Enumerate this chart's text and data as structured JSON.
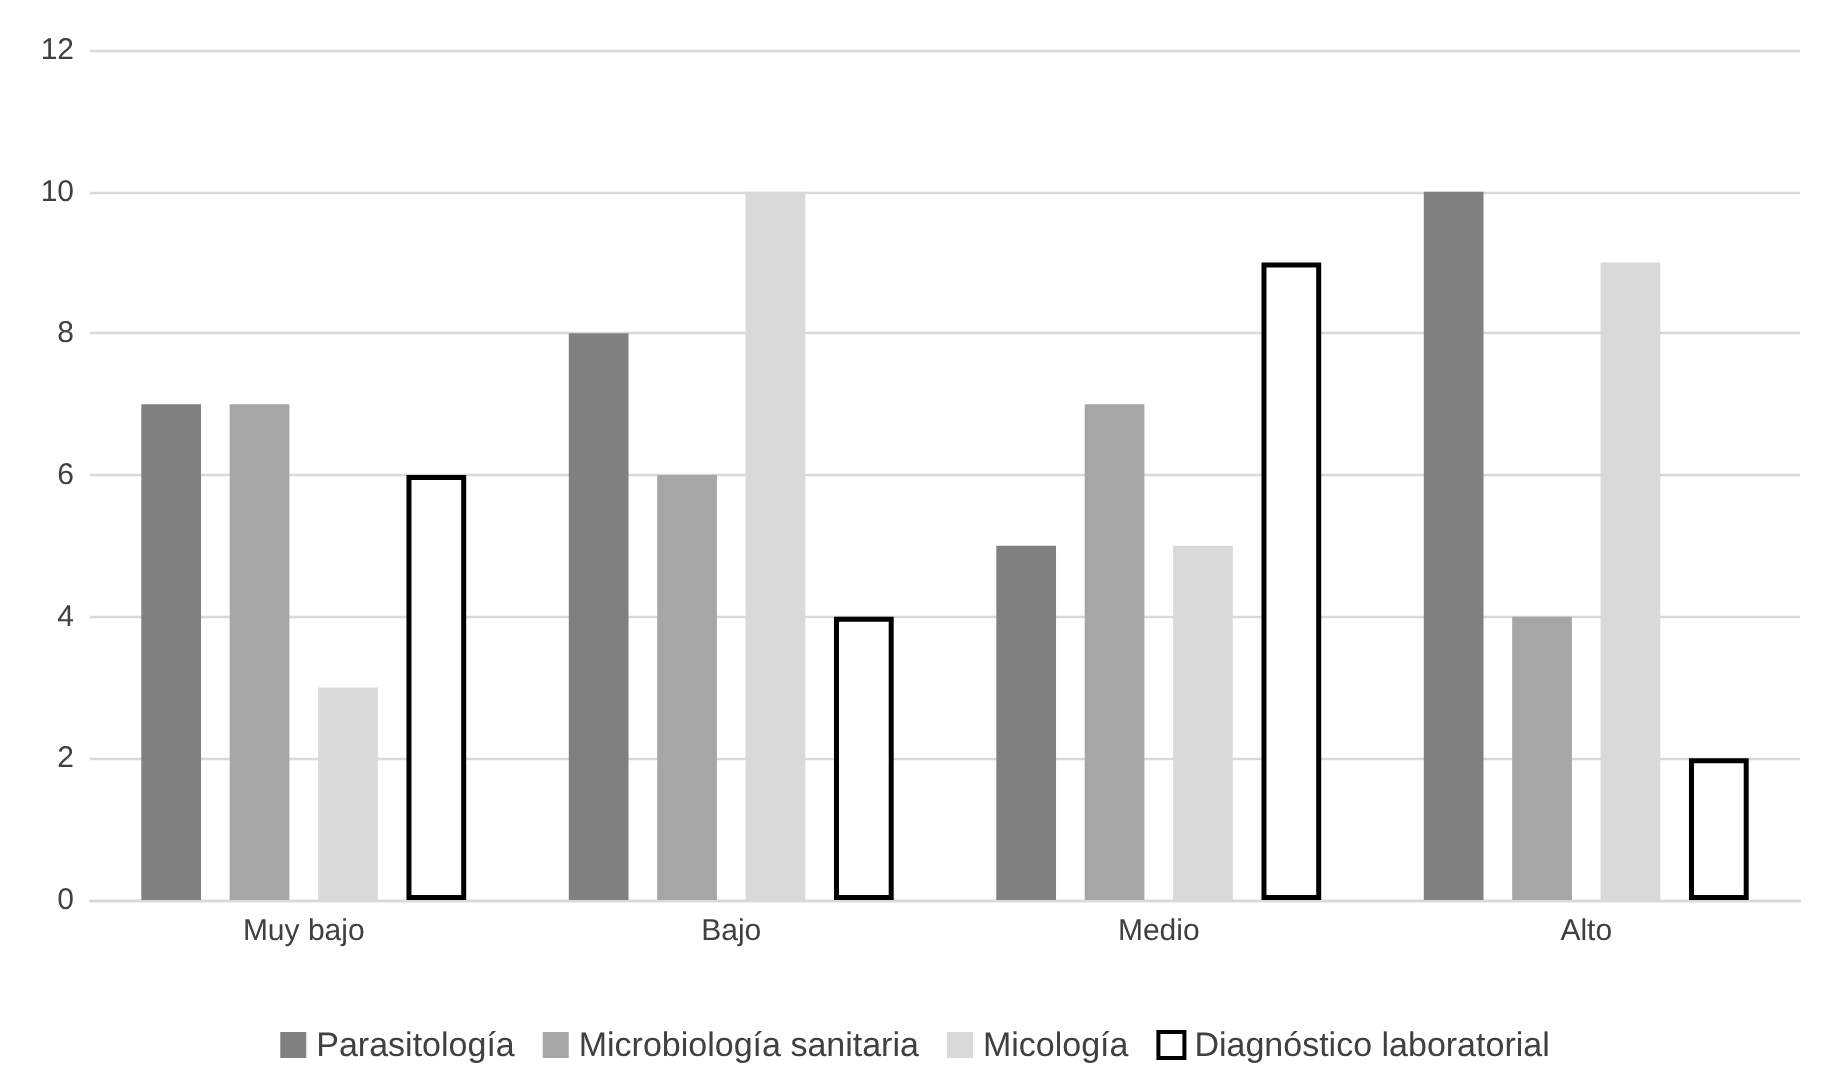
{
  "chart_data": {
    "type": "bar",
    "categories": [
      "Muy bajo",
      "Bajo",
      "Medio",
      "Alto"
    ],
    "series": [
      {
        "name": "Parasitología",
        "color": "#808080",
        "values": [
          7,
          8,
          5,
          10
        ]
      },
      {
        "name": "Microbiología sanitaria",
        "color": "#a6a6a6",
        "values": [
          7,
          6,
          7,
          4
        ]
      },
      {
        "name": "Micología",
        "color": "#d9d9d9",
        "values": [
          3,
          10,
          5,
          9
        ]
      },
      {
        "name": "Diagnóstico laboratorial",
        "color": "#ffffff",
        "values": [
          6,
          4,
          9,
          2
        ]
      }
    ],
    "ylim": [
      0,
      12
    ],
    "yticks": [
      0,
      2,
      4,
      6,
      8,
      10,
      12
    ],
    "grid": "y",
    "legend": "bottom"
  }
}
